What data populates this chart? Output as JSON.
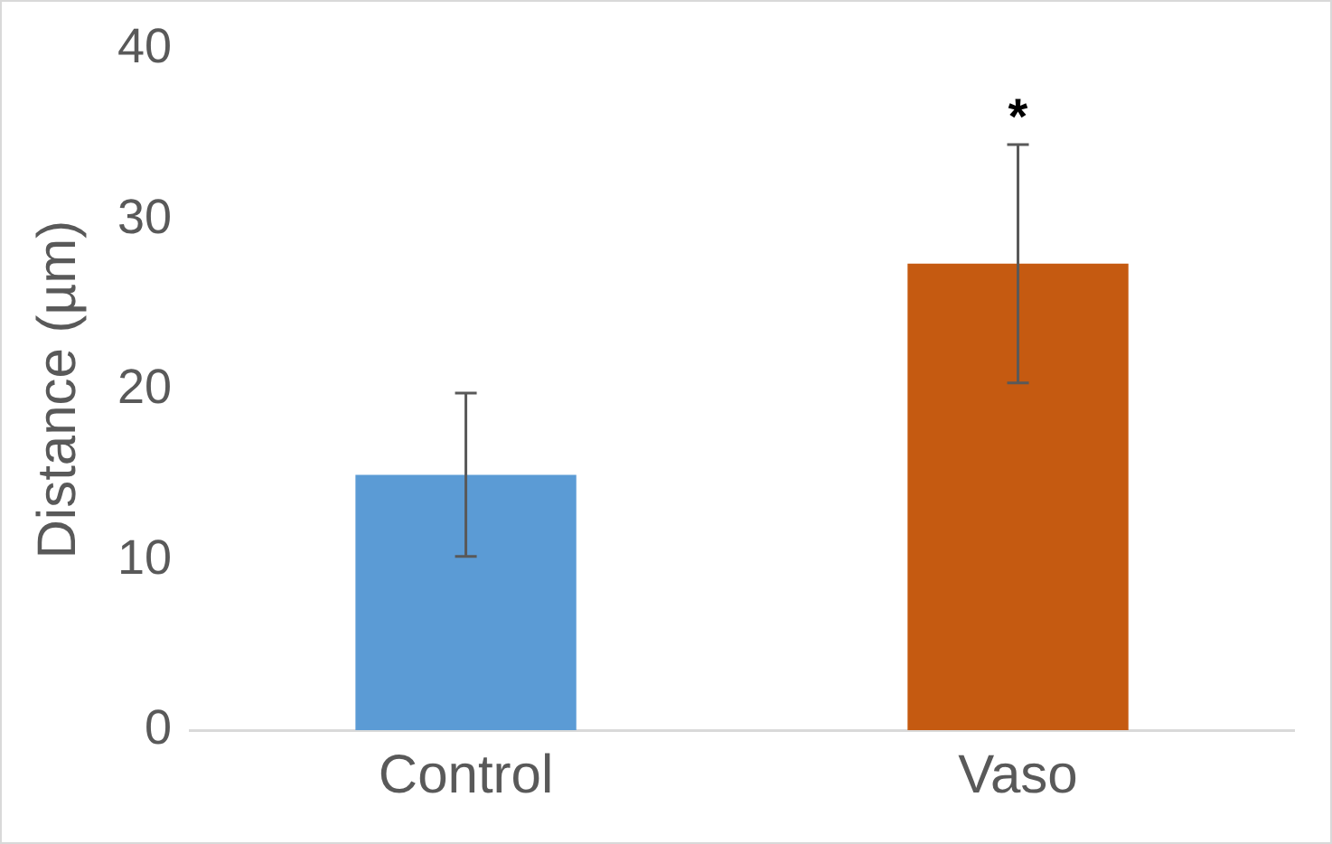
{
  "chart_data": {
    "type": "bar",
    "ylabel": "Distance (µm)",
    "categories": [
      "Control",
      "Vaso"
    ],
    "values": [
      15,
      27.4
    ],
    "colors": [
      "#5b9bd5",
      "#c55a11"
    ],
    "errors": [
      4.8,
      7
    ],
    "ylim": [
      0,
      40
    ],
    "yticks": [
      0,
      10,
      20,
      30,
      40
    ],
    "grid": false,
    "legend": false,
    "annotations": [
      "*"
    ]
  }
}
